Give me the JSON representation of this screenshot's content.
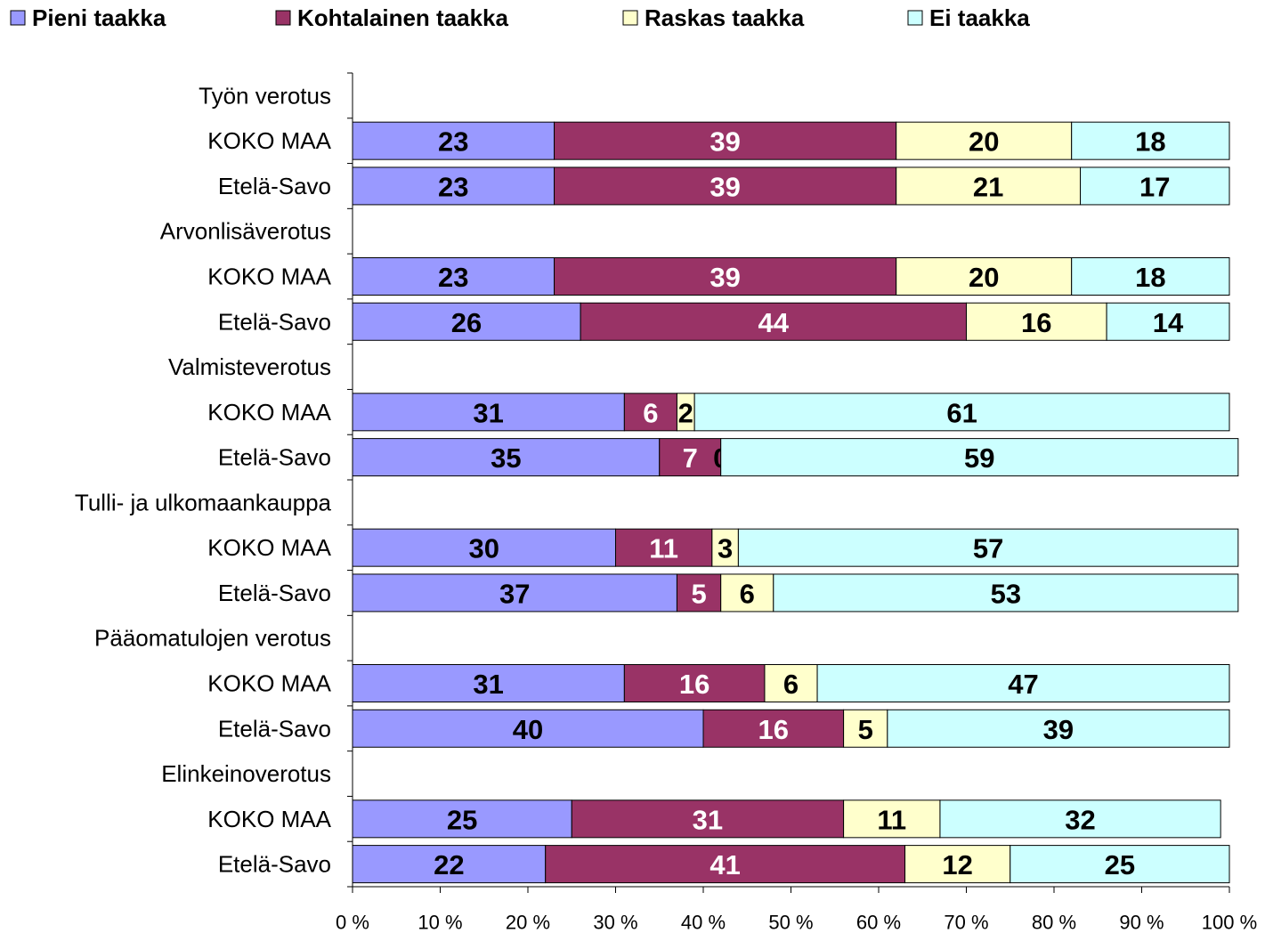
{
  "chart_data": {
    "type": "stacked-barh",
    "categories": [
      "Työn verotus",
      "KOKO MAA",
      "Etelä-Savo",
      "Arvonlisäverotus",
      "KOKO MAA",
      "Etelä-Savo",
      "Valmisteverotus",
      "KOKO MAA",
      "Etelä-Savo",
      "Tulli- ja ulkomaankauppa",
      "KOKO MAA",
      "Etelä-Savo",
      "Pääomatulojen verotus",
      "KOKO MAA",
      "Etelä-Savo",
      "Elinkeinoverotus",
      "KOKO MAA",
      "Etelä-Savo"
    ],
    "series": [
      {
        "name": "Pieni taakka",
        "color": "#9999ff",
        "values": [
          null,
          23,
          23,
          null,
          23,
          26,
          null,
          31,
          35,
          null,
          30,
          37,
          null,
          31,
          40,
          null,
          25,
          22
        ]
      },
      {
        "name": "Kohtalainen taakka",
        "color": "#993366",
        "values": [
          null,
          39,
          39,
          null,
          39,
          44,
          null,
          6,
          7,
          null,
          11,
          5,
          null,
          16,
          16,
          null,
          31,
          41
        ]
      },
      {
        "name": "Raskas taakka",
        "color": "#ffffcc",
        "values": [
          null,
          20,
          21,
          null,
          20,
          16,
          null,
          2,
          0,
          null,
          3,
          6,
          null,
          6,
          5,
          null,
          11,
          12
        ]
      },
      {
        "name": "Ei taakka",
        "color": "#ccffff",
        "values": [
          null,
          18,
          17,
          null,
          18,
          14,
          null,
          61,
          59,
          null,
          57,
          53,
          null,
          47,
          39,
          null,
          32,
          25
        ]
      }
    ],
    "xlim": [
      0,
      100
    ],
    "xticks": [
      {
        "value": 0,
        "label": "0 %"
      },
      {
        "value": 10,
        "label": "10 %"
      },
      {
        "value": 20,
        "label": "20 %"
      },
      {
        "value": 30,
        "label": "30 %"
      },
      {
        "value": 40,
        "label": "40 %"
      },
      {
        "value": 50,
        "label": "50 %"
      },
      {
        "value": 60,
        "label": "60 %"
      },
      {
        "value": 70,
        "label": "70 %"
      },
      {
        "value": 80,
        "label": "80 %"
      },
      {
        "value": 90,
        "label": "90 %"
      },
      {
        "value": 100,
        "label": "100 %"
      }
    ],
    "legend": "top"
  }
}
